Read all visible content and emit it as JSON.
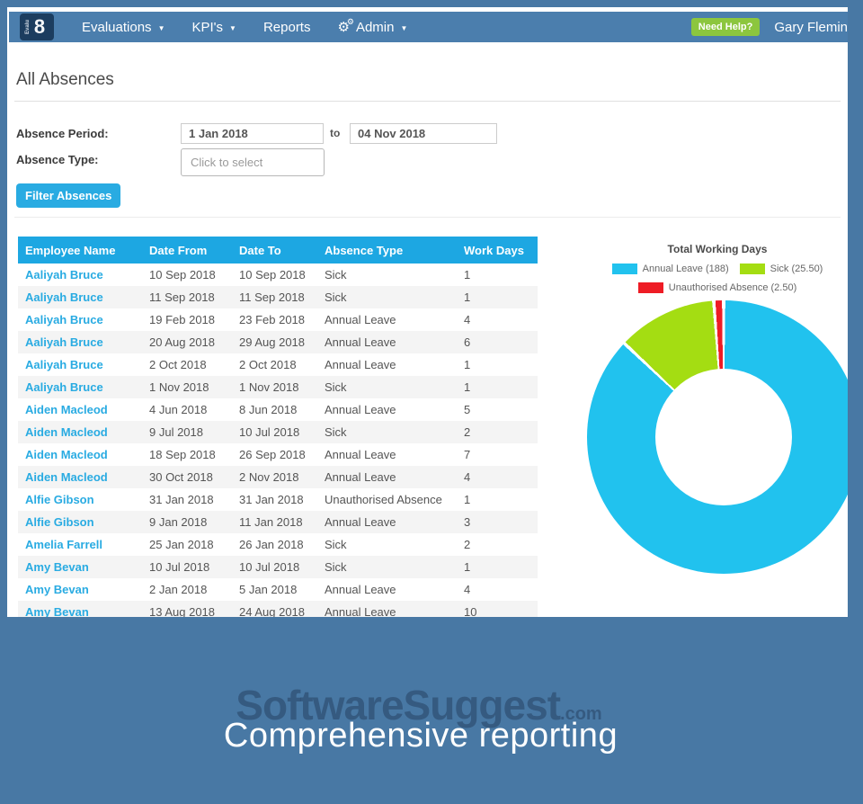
{
  "nav": {
    "logo_vertical": "Evalu",
    "logo_big": "8",
    "items": [
      {
        "label": "Evaluations",
        "caret": true,
        "icon": false
      },
      {
        "label": "KPI's",
        "caret": true,
        "icon": false
      },
      {
        "label": "Reports",
        "caret": false,
        "icon": false
      },
      {
        "label": "Admin",
        "caret": true,
        "icon": true
      }
    ],
    "need_help": "Need Help?",
    "user": "Gary Flemin"
  },
  "page": {
    "title": "All Absences"
  },
  "filters": {
    "period_label": "Absence Period:",
    "from_value": "1 Jan 2018",
    "to_word": "to",
    "to_value": "04 Nov 2018",
    "type_label": "Absence Type:",
    "type_placeholder": "Click to select",
    "button_label": "Filter Absences"
  },
  "table": {
    "columns": [
      "Employee Name",
      "Date From",
      "Date To",
      "Absence Type",
      "Work Days"
    ],
    "rows": [
      [
        "Aaliyah Bruce",
        "10 Sep 2018",
        "10 Sep 2018",
        "Sick",
        "1"
      ],
      [
        "Aaliyah Bruce",
        "11 Sep 2018",
        "11 Sep 2018",
        "Sick",
        "1"
      ],
      [
        "Aaliyah Bruce",
        "19 Feb 2018",
        "23 Feb 2018",
        "Annual Leave",
        "4"
      ],
      [
        "Aaliyah Bruce",
        "20 Aug 2018",
        "29 Aug 2018",
        "Annual Leave",
        "6"
      ],
      [
        "Aaliyah Bruce",
        "2 Oct 2018",
        "2 Oct 2018",
        "Annual Leave",
        "1"
      ],
      [
        "Aaliyah Bruce",
        "1 Nov 2018",
        "1 Nov 2018",
        "Sick",
        "1"
      ],
      [
        "Aiden Macleod",
        "4 Jun 2018",
        "8 Jun 2018",
        "Annual Leave",
        "5"
      ],
      [
        "Aiden Macleod",
        "9 Jul 2018",
        "10 Jul 2018",
        "Sick",
        "2"
      ],
      [
        "Aiden Macleod",
        "18 Sep 2018",
        "26 Sep 2018",
        "Annual Leave",
        "7"
      ],
      [
        "Aiden Macleod",
        "30 Oct 2018",
        "2 Nov 2018",
        "Annual Leave",
        "4"
      ],
      [
        "Alfie Gibson",
        "31 Jan 2018",
        "31 Jan 2018",
        "Unauthorised Absence",
        "1"
      ],
      [
        "Alfie Gibson",
        "9 Jan 2018",
        "11 Jan 2018",
        "Annual Leave",
        "3"
      ],
      [
        "Amelia Farrell",
        "25 Jan 2018",
        "26 Jan 2018",
        "Sick",
        "2"
      ],
      [
        "Amy Bevan",
        "10 Jul 2018",
        "10 Jul 2018",
        "Sick",
        "1"
      ],
      [
        "Amy Bevan",
        "2 Jan 2018",
        "5 Jan 2018",
        "Annual Leave",
        "4"
      ],
      [
        "Amy Bevan",
        "13 Aug 2018",
        "24 Aug 2018",
        "Annual Leave",
        "10"
      ]
    ]
  },
  "chart_data": {
    "type": "pie",
    "donut": true,
    "title": "Total Working Days",
    "legend_position": "top",
    "total": 216,
    "series": [
      {
        "name": "Annual Leave",
        "value": 188,
        "color": "#21c2ee",
        "legend": "Annual Leave (188)"
      },
      {
        "name": "Sick",
        "value": 25.5,
        "color": "#a4dd12",
        "legend": "Sick (25.50)"
      },
      {
        "name": "Unauthorised Absence",
        "value": 2.5,
        "color": "#ee1c25",
        "legend": "Unauthorised Absence (2.50)"
      }
    ]
  },
  "footer": {
    "watermark": "SoftwareSuggest",
    "watermark_suffix": ".com",
    "caption": "Comprehensive reporting"
  },
  "colors": {
    "frame": "#4878a4",
    "navbar": "#4b7ead",
    "table_header": "#1da7e2",
    "link": "#29abe2",
    "filter_button": "#29abe2",
    "need_help_button": "#8cc63e",
    "row_alt": "#f4f4f4"
  }
}
